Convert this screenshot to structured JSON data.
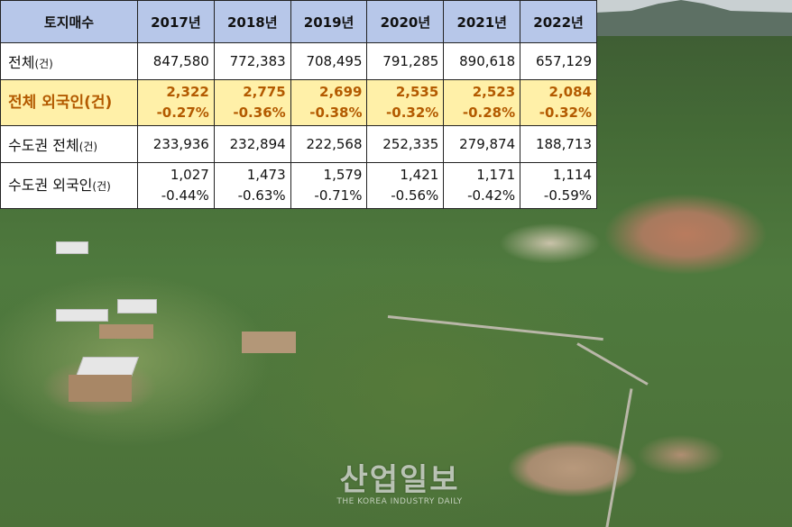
{
  "table": {
    "header": {
      "corner": "토지매수",
      "years": [
        "2017년",
        "2018년",
        "2019년",
        "2020년",
        "2021년",
        "2022년"
      ]
    },
    "rows": {
      "total": {
        "label": "전체",
        "unit": "(건)",
        "values": [
          "847,580",
          "772,383",
          "708,495",
          "791,285",
          "890,618",
          "657,129"
        ]
      },
      "foreign": {
        "label": "전체 외국인(건)",
        "values": [
          "2,322",
          "2,775",
          "2,699",
          "2,535",
          "2,523",
          "2,084"
        ],
        "shares": [
          "-0.27%",
          "-0.36%",
          "-0.38%",
          "-0.32%",
          "-0.28%",
          "-0.32%"
        ]
      },
      "metro": {
        "label": "수도권 전체",
        "unit": "(건)",
        "values": [
          "233,936",
          "232,894",
          "222,568",
          "252,335",
          "279,874",
          "188,713"
        ]
      },
      "metro_foreign": {
        "label": "수도권 외국인",
        "unit": "(건)",
        "values": [
          "1,027",
          "1,473",
          "1,579",
          "1,421",
          "1,171",
          "1,114"
        ],
        "shares": [
          "-0.44%",
          "-0.63%",
          "-0.71%",
          "-0.56%",
          "-0.42%",
          "-0.59%"
        ]
      }
    }
  },
  "watermark": {
    "main": "산업일보",
    "sub": "THE KOREA INDUSTRY DAILY"
  },
  "colors": {
    "header_bg": "#b7c7e9",
    "highlight_bg": "#fff0a8",
    "highlight_text": "#b35a00"
  }
}
